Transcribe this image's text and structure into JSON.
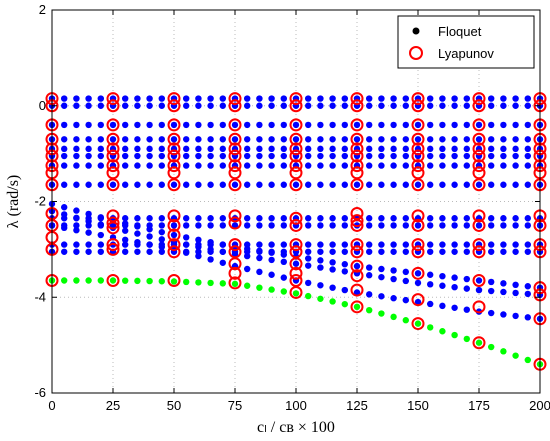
{
  "chart_data": {
    "type": "scatter",
    "xlabel": "cₗ / cʙ × 100",
    "ylabel": "λ (rad/s)",
    "xlim": [
      0,
      200
    ],
    "ylim": [
      -6,
      2
    ],
    "xticks": [
      0,
      25,
      50,
      75,
      100,
      125,
      150,
      175,
      200
    ],
    "yticks": [
      -6,
      -4,
      -2,
      0,
      2
    ],
    "grid": "dotted",
    "legend_position": "top-right",
    "legend": [
      {
        "label": "Floquet",
        "marker": "filled-dot",
        "color": "#000000"
      },
      {
        "label": "Lyapunov",
        "marker": "open-circle",
        "color": "#ff0000"
      }
    ],
    "colors": {
      "floquet_main": "#0000ff",
      "floquet_lowest": "#00ff00",
      "lyapunov": "#ff0000",
      "grid": "#bbbbbb"
    },
    "series": [
      {
        "name": "Floquet",
        "marker": "filled-dot",
        "x_step": 5,
        "x_range": [
          0,
          200
        ],
        "constant_levels_y": [
          0.15,
          0.0,
          -0.4,
          -0.7,
          -0.9,
          -1.05,
          -1.25,
          -1.65,
          -2.35,
          -2.5,
          -2.9,
          -3.05
        ],
        "varying_curves": [
          {
            "x": [
              0,
              25,
              50,
              75,
              100,
              125,
              150,
              175,
              200
            ],
            "y": [
              -2.05,
              -2.4,
              -2.7,
              -2.95,
              -3.15,
              -3.35,
              -3.5,
              -3.65,
              -3.8
            ]
          },
          {
            "x": [
              0,
              25,
              50,
              75,
              100,
              125,
              150,
              175,
              200
            ],
            "y": [
              -2.2,
              -2.55,
              -2.85,
              -3.1,
              -3.3,
              -3.5,
              -3.7,
              -3.85,
              -3.95
            ]
          },
          {
            "x": [
              0,
              25,
              50,
              75,
              100,
              125,
              150,
              175,
              200
            ],
            "y": [
              -2.5,
              -2.75,
              -3.0,
              -3.35,
              -3.65,
              -3.9,
              -4.1,
              -4.3,
              -4.45
            ]
          },
          {
            "x": [
              0,
              25,
              50,
              75,
              100,
              125,
              150,
              175,
              200
            ],
            "y": [
              -3.65,
              -3.65,
              -3.67,
              -3.72,
              -3.92,
              -4.2,
              -4.55,
              -4.95,
              -5.4
            ]
          }
        ]
      },
      {
        "name": "Lyapunov",
        "marker": "open-circle",
        "points": [
          [
            0,
            0.15
          ],
          [
            0,
            0.0
          ],
          [
            0,
            -0.4
          ],
          [
            0,
            -0.7
          ],
          [
            0,
            -0.9
          ],
          [
            0,
            -1.05
          ],
          [
            0,
            -1.25
          ],
          [
            0,
            -1.4
          ],
          [
            0,
            -1.65
          ],
          [
            0,
            -2.25
          ],
          [
            0,
            -2.5
          ],
          [
            0,
            -2.75
          ],
          [
            0,
            -3.0
          ],
          [
            0,
            -3.65
          ],
          [
            25,
            0.15
          ],
          [
            25,
            0.0
          ],
          [
            25,
            -0.4
          ],
          [
            25,
            -0.7
          ],
          [
            25,
            -0.9
          ],
          [
            25,
            -1.05
          ],
          [
            25,
            -1.25
          ],
          [
            25,
            -1.4
          ],
          [
            25,
            -1.65
          ],
          [
            25,
            -2.3
          ],
          [
            25,
            -2.45
          ],
          [
            25,
            -2.55
          ],
          [
            25,
            -2.9
          ],
          [
            25,
            -3.0
          ],
          [
            25,
            -3.65
          ],
          [
            50,
            0.15
          ],
          [
            50,
            0.0
          ],
          [
            50,
            -0.4
          ],
          [
            50,
            -0.7
          ],
          [
            50,
            -0.9
          ],
          [
            50,
            -1.05
          ],
          [
            50,
            -1.25
          ],
          [
            50,
            -1.4
          ],
          [
            50,
            -1.65
          ],
          [
            50,
            -2.3
          ],
          [
            50,
            -2.5
          ],
          [
            50,
            -2.7
          ],
          [
            50,
            -2.9
          ],
          [
            50,
            -3.05
          ],
          [
            50,
            -3.65
          ],
          [
            75,
            0.15
          ],
          [
            75,
            0.0
          ],
          [
            75,
            -0.4
          ],
          [
            75,
            -0.7
          ],
          [
            75,
            -0.9
          ],
          [
            75,
            -1.05
          ],
          [
            75,
            -1.25
          ],
          [
            75,
            -1.4
          ],
          [
            75,
            -1.65
          ],
          [
            75,
            -2.3
          ],
          [
            75,
            -2.45
          ],
          [
            75,
            -2.9
          ],
          [
            75,
            -3.05
          ],
          [
            75,
            -3.3
          ],
          [
            75,
            -3.5
          ],
          [
            75,
            -3.7
          ],
          [
            100,
            0.15
          ],
          [
            100,
            0.0
          ],
          [
            100,
            -0.4
          ],
          [
            100,
            -0.7
          ],
          [
            100,
            -0.9
          ],
          [
            100,
            -1.05
          ],
          [
            100,
            -1.25
          ],
          [
            100,
            -1.4
          ],
          [
            100,
            -1.65
          ],
          [
            100,
            -2.35
          ],
          [
            100,
            -2.5
          ],
          [
            100,
            -2.9
          ],
          [
            100,
            -3.05
          ],
          [
            100,
            -3.3
          ],
          [
            100,
            -3.5
          ],
          [
            100,
            -3.65
          ],
          [
            100,
            -3.9
          ],
          [
            125,
            0.15
          ],
          [
            125,
            0.0
          ],
          [
            125,
            -0.4
          ],
          [
            125,
            -0.7
          ],
          [
            125,
            -0.9
          ],
          [
            125,
            -1.05
          ],
          [
            125,
            -1.25
          ],
          [
            125,
            -1.4
          ],
          [
            125,
            -1.65
          ],
          [
            125,
            -2.25
          ],
          [
            125,
            -2.4
          ],
          [
            125,
            -2.5
          ],
          [
            125,
            -2.9
          ],
          [
            125,
            -3.05
          ],
          [
            125,
            -3.35
          ],
          [
            125,
            -3.55
          ],
          [
            125,
            -3.85
          ],
          [
            125,
            -4.2
          ],
          [
            150,
            0.15
          ],
          [
            150,
            0.0
          ],
          [
            150,
            -0.4
          ],
          [
            150,
            -0.7
          ],
          [
            150,
            -0.9
          ],
          [
            150,
            -1.05
          ],
          [
            150,
            -1.25
          ],
          [
            150,
            -1.4
          ],
          [
            150,
            -1.65
          ],
          [
            150,
            -2.3
          ],
          [
            150,
            -2.5
          ],
          [
            150,
            -2.9
          ],
          [
            150,
            -3.05
          ],
          [
            150,
            -3.5
          ],
          [
            150,
            -4.05
          ],
          [
            150,
            -4.55
          ],
          [
            175,
            0.15
          ],
          [
            175,
            0.0
          ],
          [
            175,
            -0.4
          ],
          [
            175,
            -0.7
          ],
          [
            175,
            -0.9
          ],
          [
            175,
            -1.05
          ],
          [
            175,
            -1.25
          ],
          [
            175,
            -1.4
          ],
          [
            175,
            -1.65
          ],
          [
            175,
            -2.3
          ],
          [
            175,
            -2.5
          ],
          [
            175,
            -2.9
          ],
          [
            175,
            -3.05
          ],
          [
            175,
            -3.65
          ],
          [
            175,
            -4.2
          ],
          [
            175,
            -4.95
          ],
          [
            200,
            0.15
          ],
          [
            200,
            0.0
          ],
          [
            200,
            -0.4
          ],
          [
            200,
            -0.7
          ],
          [
            200,
            -0.9
          ],
          [
            200,
            -1.05
          ],
          [
            200,
            -1.25
          ],
          [
            200,
            -1.4
          ],
          [
            200,
            -1.65
          ],
          [
            200,
            -2.3
          ],
          [
            200,
            -2.5
          ],
          [
            200,
            -2.9
          ],
          [
            200,
            -3.05
          ],
          [
            200,
            -3.8
          ],
          [
            200,
            -3.95
          ],
          [
            200,
            -4.45
          ],
          [
            200,
            -5.4
          ]
        ]
      }
    ]
  }
}
